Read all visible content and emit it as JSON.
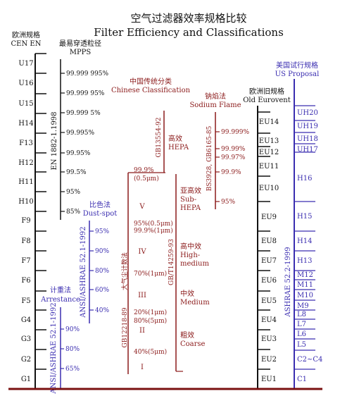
{
  "title": {
    "zh": "空气过滤器效率规格比较",
    "en": "Filter Efficiency and Classifications"
  },
  "colors": {
    "black": "#111111",
    "red": "#8b1a1a",
    "blue": "#3a2db0",
    "baseline": "#7a1010"
  },
  "cen": {
    "header_zh": "欧洲规格",
    "header_en": "CEN EN",
    "classes": [
      "G1",
      "G2",
      "G3",
      "G4",
      "F5",
      "F6",
      "F7",
      "F8",
      "F9",
      "H10",
      "H11",
      "H12",
      "F13",
      "H14",
      "U15",
      "U16",
      "U17"
    ]
  },
  "mpps": {
    "header_zh": "最易穿透粒径",
    "header_en": "MPPS",
    "standard": "EN 1882-1.1998",
    "values": [
      "99.999 995%",
      "99.999 95%",
      "99.999 5%",
      "99.995%",
      "99.95%",
      "99.5%",
      "95%",
      "85%"
    ]
  },
  "chinese": {
    "header_zh": "中国传统分类",
    "header_en": "Chinese Classification",
    "gb_left": "GB12218-89",
    "gb_left2": "大气尘计数法",
    "gb_mid": "GB/T14259-93",
    "gb_top": "GB13554-92",
    "roman": [
      "V",
      "IV",
      "III",
      "II",
      "I"
    ],
    "values": [
      "99.9%",
      "(0.5μm)",
      "95%(0.5μm)",
      "99.9%(1μm)",
      "70%(1μm)",
      "20%(1μm)",
      "80%(5μm)",
      "40%(5μm)"
    ],
    "cats": {
      "hepa_zh": "高效",
      "hepa_en": "HEPA",
      "subhepa_zh": "亚高效",
      "subhepa_en1": "Sub-",
      "subhepa_en2": "HEPA",
      "highmed_zh": "高中效",
      "highmed_en1": "High-",
      "highmed_en2": "medium",
      "medium_zh": "中效",
      "medium_en": "Medium",
      "coarse_zh": "粗效",
      "coarse_en": "Coarse"
    }
  },
  "sodium": {
    "header_zh": "钠焰法",
    "header_en": "Sodium Flame",
    "standard": "BS3928, GB6165-85",
    "values": [
      "99.999%",
      "99.99%",
      "99.97%",
      "99.9%",
      "95%"
    ]
  },
  "dustspot": {
    "header_zh": "比色法",
    "header_en": "Dust-spot",
    "standard": "ANSI/ASHRAE 52.1-1992",
    "values": [
      "95%",
      "90%",
      "80%",
      "60%",
      "40%"
    ]
  },
  "arrestance": {
    "header_zh": "计重法",
    "header_en": "Arrestance",
    "standard": "ANSI/ASHRAE 52.1-1992",
    "values": [
      "90%",
      "80%",
      "65%"
    ]
  },
  "eurovent": {
    "header_zh": "欧洲旧规格",
    "header_en": "Old Eurovent",
    "classes": [
      "EU1",
      "EU2",
      "EU3",
      "EU4",
      "EU5",
      "EU6",
      "EU7",
      "EU8",
      "EU9",
      "EU10",
      "EU11",
      "EU12",
      "EU13",
      "EU14"
    ]
  },
  "us": {
    "header_zh": "美国试行规格",
    "header_en": "US Proposal",
    "standard": "ASHRAE 52.2-1999",
    "classes": [
      "C1",
      "C2~C4",
      "L5",
      "L6",
      "L7",
      "L8",
      "M9",
      "M10",
      "M11",
      "M12",
      "H13",
      "H14",
      "H15",
      "H16",
      "UH17",
      "UH18",
      "UH19",
      "UH20"
    ]
  }
}
